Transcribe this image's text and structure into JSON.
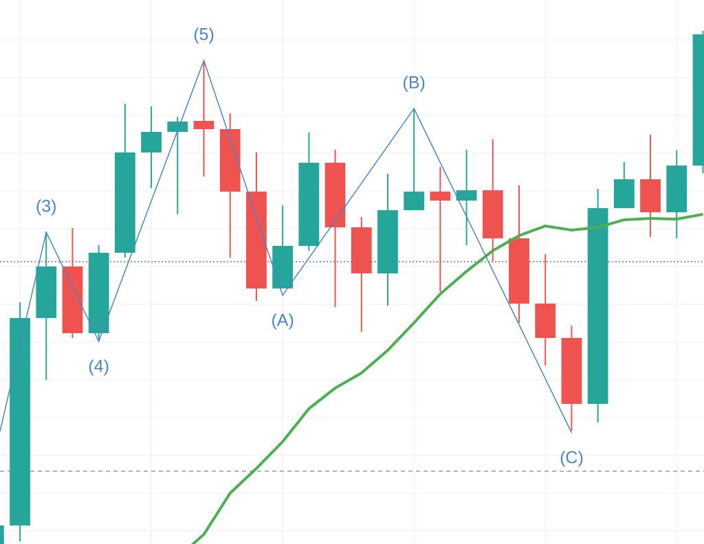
{
  "chart_data": {
    "type": "candlestick",
    "ylim": [
      0,
      792
    ],
    "xlim": [
      0.24,
      27.04
    ],
    "grid": true,
    "ygrid": [
      734,
      679,
      624,
      569,
      514,
      459,
      404,
      349,
      294,
      239,
      184,
      129,
      74,
      19
    ],
    "xgrid": [
      1,
      6,
      11,
      16,
      21,
      26
    ],
    "up_color": "#26a69a",
    "down_color": "#ef5350",
    "open": [
      -10,
      27,
      329,
      404,
      307,
      424,
      570,
      600,
      616,
      604,
      513,
      372,
      434,
      555,
      461,
      394,
      486,
      513,
      500,
      515,
      445,
      350,
      300,
      204,
      489,
      531,
      483,
      551
    ],
    "close": [
      27,
      329,
      404,
      307,
      424,
      570,
      600,
      615,
      604,
      513,
      372,
      434,
      555,
      461,
      394,
      486,
      513,
      500,
      515,
      445,
      350,
      300,
      204,
      489,
      531,
      483,
      551,
      742
    ],
    "high": [
      27,
      352,
      454,
      460,
      435,
      641,
      637,
      622,
      704,
      627,
      570,
      493,
      599,
      574,
      476,
      539,
      634,
      549,
      574,
      589,
      522,
      422,
      318,
      517,
      556,
      596,
      573,
      747
    ],
    "low": [
      -10,
      4,
      239,
      300,
      295,
      417,
      518,
      480,
      535,
      417,
      354,
      372,
      427,
      345,
      309,
      347,
      486,
      367,
      435,
      412,
      322,
      260,
      165,
      177,
      489,
      447,
      445,
      540
    ],
    "series": [
      {
        "color": "#4caf50",
        "values": [
          null,
          null,
          null,
          null,
          null,
          null,
          null,
          -20,
          14,
          74,
          110,
          149,
          197,
          227,
          249,
          282,
          322,
          364,
          397,
          427,
          449,
          463,
          457,
          461,
          472,
          474,
          473,
          480
        ]
      }
    ],
    "wave": {
      "color": "#4a86c5",
      "x": [
        0.24,
        2,
        4,
        8,
        11,
        16,
        22
      ],
      "values": [
        164,
        454,
        295,
        704,
        362,
        634,
        162
      ],
      "labels": [
        null,
        "(3)",
        "(4)",
        "(5)",
        "(A)",
        "(B)",
        "(C)"
      ]
    },
    "hlines": [
      {
        "value": 411,
        "style": "dotted",
        "color": "#555555"
      },
      {
        "value": 106,
        "style": "dashed",
        "color": "#888888"
      }
    ]
  }
}
